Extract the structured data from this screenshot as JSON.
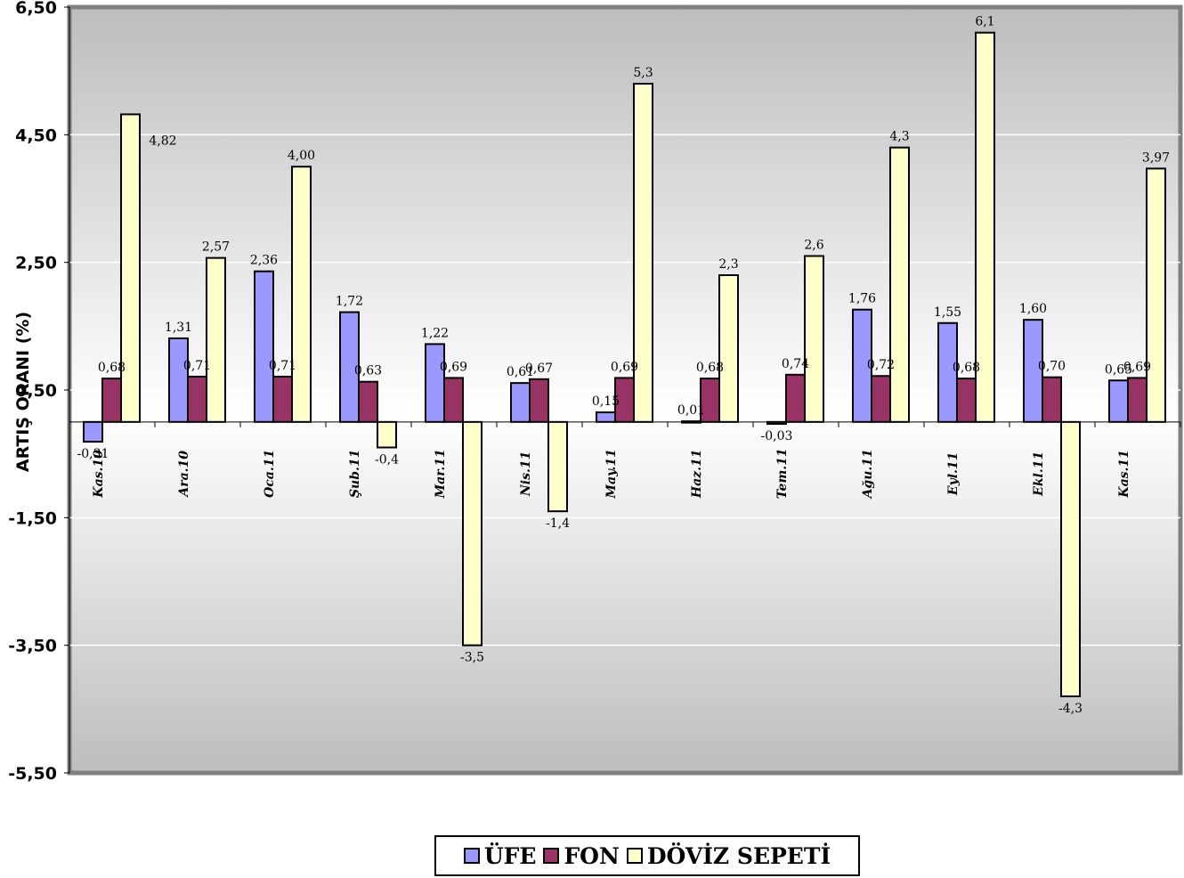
{
  "chart_data": {
    "type": "bar",
    "ylabel": "ARTIŞ ORANI (%)",
    "ylim": [
      -5.5,
      6.5
    ],
    "yticks": [
      "6,50",
      "4,50",
      "2,50",
      "0,50",
      "-1,50",
      "-3,50",
      "-5,50"
    ],
    "ytick_values": [
      6.5,
      4.5,
      2.5,
      0.5,
      -1.5,
      -3.5,
      -5.5
    ],
    "grid": true,
    "legend_position": "bottom",
    "categories": [
      "Kas.10",
      "Ara.10",
      "Oca.11",
      "Şub.11",
      "Mar.11",
      "Nis.11",
      "May.11",
      "Haz.11",
      "Tem.11",
      "Ağu.11",
      "Eyl.11",
      "Ekl.11",
      "Kas.11"
    ],
    "series": [
      {
        "name": "ÜFE",
        "color": "#9999ff",
        "values": [
          -0.31,
          1.31,
          2.36,
          1.72,
          1.22,
          0.61,
          0.15,
          0.01,
          -0.03,
          1.76,
          1.55,
          1.6,
          0.65
        ],
        "labels": [
          "-0,31",
          "1,31",
          "2,36",
          "1,72",
          "1,22",
          "0,61",
          "0,15",
          "0,01",
          "-0,03",
          "1,76",
          "1,55",
          "1,60",
          "0,65"
        ]
      },
      {
        "name": "FON",
        "color": "#993366",
        "values": [
          0.68,
          0.71,
          0.71,
          0.63,
          0.69,
          0.67,
          0.69,
          0.68,
          0.74,
          0.72,
          0.68,
          0.7,
          0.69
        ],
        "labels": [
          "0,68",
          "0,71",
          "0,71",
          "0,63",
          "0,69",
          "0,67",
          "0,69",
          "0,68",
          "0,74",
          "0,72",
          "0,68",
          "0,70",
          "0,69"
        ]
      },
      {
        "name": "DÖVİZ SEPETİ",
        "color": "#ffffcc",
        "values": [
          4.82,
          2.57,
          4.0,
          -0.4,
          -3.5,
          -1.4,
          5.3,
          2.3,
          2.6,
          4.3,
          6.1,
          -4.3,
          3.97
        ],
        "labels": [
          "4,82",
          "2,57",
          "4,00",
          "-0,4",
          "-3,5",
          "-1,4",
          "5,3",
          "2,3",
          "2,6",
          "4,3",
          "6,1",
          "-4,3",
          "3,97"
        ]
      }
    ]
  }
}
